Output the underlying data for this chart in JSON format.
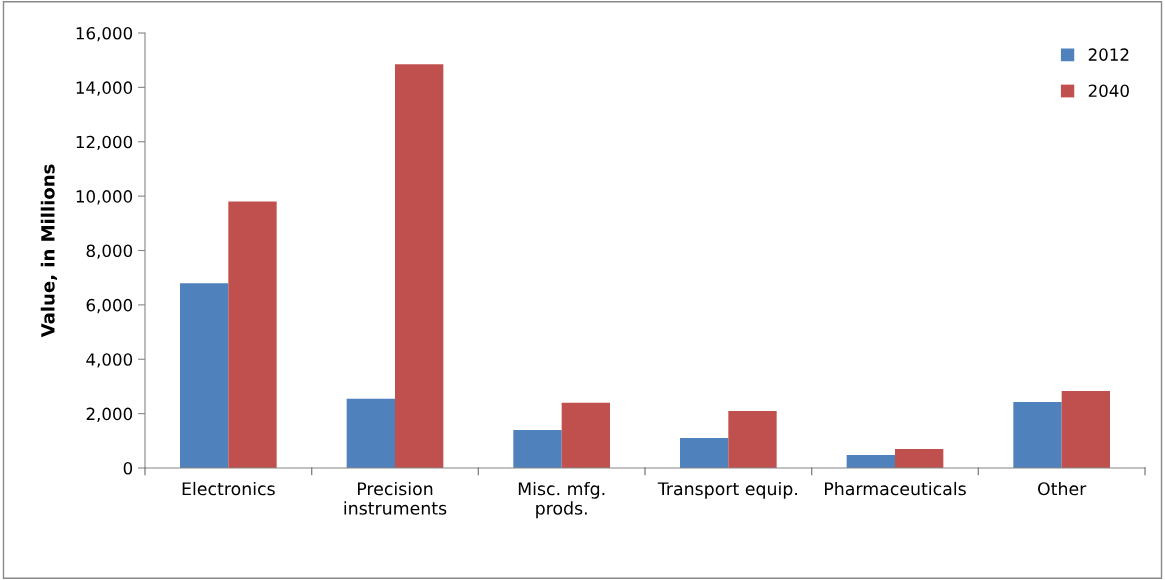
{
  "chart_data": {
    "type": "bar",
    "ylabel": "Value, in Millions",
    "categories": [
      "Electronics",
      "Precision\ninstruments",
      "Misc. mfg.\nprods.",
      "Transport equip.",
      "Pharmaceuticals",
      "Other"
    ],
    "series": [
      {
        "name": "2012",
        "color": "#4f81bd",
        "values": [
          6800,
          2550,
          1400,
          1100,
          480,
          2430
        ]
      },
      {
        "name": "2040",
        "color": "#c0504d",
        "values": [
          9800,
          14850,
          2400,
          2100,
          700,
          2830
        ]
      }
    ],
    "ylim": [
      0,
      16000
    ],
    "yticks": [
      {
        "value": 0,
        "label": "0"
      },
      {
        "value": 2000,
        "label": "2,000"
      },
      {
        "value": 4000,
        "label": "4,000"
      },
      {
        "value": 6000,
        "label": "6,000"
      },
      {
        "value": 8000,
        "label": "8,000"
      },
      {
        "value": 10000,
        "label": "10,000"
      },
      {
        "value": 12000,
        "label": "12,000"
      },
      {
        "value": 14000,
        "label": "14,000"
      },
      {
        "value": 16000,
        "label": "16,000"
      }
    ],
    "grid": false,
    "legend": "top right"
  }
}
